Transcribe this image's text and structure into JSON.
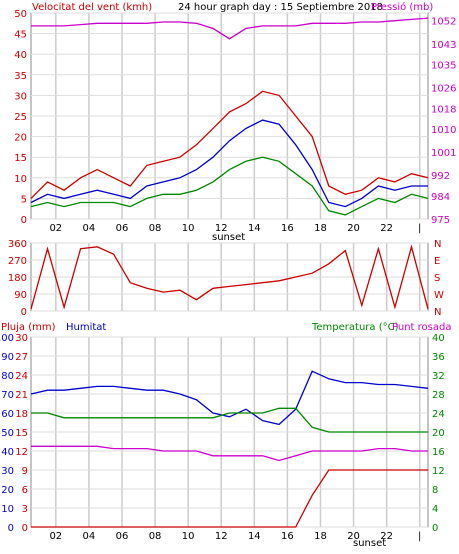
{
  "chart_data": [
    {
      "type": "line",
      "title": "24 hour graph day : 15 Septiembre 2018",
      "left_label": "Velocitat del vent (kmh)",
      "right_label": "Pressió (mb)",
      "ylim": [
        0,
        50
      ],
      "y_ticks": [
        "0",
        "5",
        "10",
        "15",
        "20",
        "25",
        "30",
        "35",
        "40",
        "45",
        "50"
      ],
      "y2lim": [
        975,
        1055
      ],
      "y2_ticks": [
        "975",
        "984",
        "992",
        "1001",
        "1010",
        "1018",
        "1026",
        "1035",
        "1043",
        "1052"
      ],
      "x_ticks": [
        "02",
        "04",
        "06",
        "08",
        "10",
        "12",
        "14",
        "16",
        "18",
        "20",
        "22",
        "|"
      ],
      "sunset_label": "sunset",
      "x": [
        0,
        1,
        2,
        3,
        4,
        5,
        6,
        7,
        8,
        9,
        10,
        11,
        12,
        13,
        14,
        15,
        16,
        17,
        18,
        19,
        20,
        21,
        22,
        23,
        24
      ],
      "series": [
        {
          "color": "#cc0000",
          "values": [
            5,
            9,
            7,
            10,
            12,
            10,
            8,
            13,
            14,
            15,
            18,
            22,
            26,
            28,
            31,
            30,
            25,
            20,
            8,
            6,
            7,
            10,
            9,
            11,
            10
          ]
        },
        {
          "color": "#0000cc",
          "values": [
            4,
            6,
            5,
            6,
            7,
            6,
            5,
            8,
            9,
            10,
            12,
            15,
            19,
            22,
            24,
            23,
            18,
            12,
            4,
            3,
            5,
            8,
            7,
            8,
            8
          ]
        },
        {
          "color": "#008800",
          "values": [
            3,
            4,
            3,
            4,
            4,
            4,
            3,
            5,
            6,
            6,
            7,
            9,
            12,
            14,
            15,
            14,
            11,
            8,
            2,
            1,
            3,
            5,
            4,
            6,
            5
          ]
        },
        {
          "color": "#cc00cc",
          "axis": "right",
          "values": [
            1050,
            1050,
            1050,
            1050.5,
            1051,
            1051,
            1051,
            1051,
            1051.5,
            1051.5,
            1051,
            1049,
            1045,
            1049,
            1050,
            1050,
            1050,
            1051,
            1051,
            1051,
            1051.5,
            1051.5,
            1052,
            1052.5,
            1053
          ]
        }
      ]
    },
    {
      "type": "line",
      "y_ticks": [
        "0",
        "90",
        "180",
        "270",
        "360"
      ],
      "ylim": [
        0,
        360
      ],
      "directions": [
        "N",
        "W",
        "S",
        "E",
        "N"
      ],
      "x_ticks": [
        "02",
        "04",
        "06",
        "08",
        "10",
        "12",
        "14",
        "16",
        "18",
        "20",
        "22",
        "|"
      ],
      "x": [
        0,
        1,
        2,
        3,
        4,
        5,
        6,
        7,
        8,
        9,
        10,
        11,
        12,
        13,
        14,
        15,
        16,
        17,
        18,
        19,
        20,
        21,
        22,
        23,
        24
      ],
      "series": [
        {
          "color": "#cc0000",
          "values": [
            10,
            330,
            20,
            330,
            340,
            300,
            150,
            120,
            100,
            110,
            60,
            120,
            130,
            140,
            150,
            160,
            180,
            200,
            250,
            320,
            30,
            330,
            20,
            340,
            10
          ]
        }
      ]
    },
    {
      "type": "line",
      "labels": [
        "Pluja (mm)",
        "Humitat",
        "Temperatura (°C)",
        "Punt rosada"
      ],
      "left_ticks_rain": [
        "0",
        "3",
        "6",
        "9",
        "12",
        "15",
        "18",
        "21",
        "24",
        "27",
        "30"
      ],
      "left_ticks_hum": [
        "0",
        "10",
        "20",
        "30",
        "40",
        "50",
        "60",
        "70",
        "80",
        "90",
        "100"
      ],
      "right_ticks": [
        "0",
        "4",
        "8",
        "12",
        "16",
        "20",
        "24",
        "28",
        "32",
        "36",
        "40"
      ],
      "x_ticks": [
        "02",
        "04",
        "06",
        "08",
        "10",
        "12",
        "14",
        "16",
        "18",
        "20",
        "22",
        "|"
      ],
      "sunset_label": "sunset",
      "x": [
        0,
        1,
        2,
        3,
        4,
        5,
        6,
        7,
        8,
        9,
        10,
        11,
        12,
        13,
        14,
        15,
        16,
        17,
        18,
        19,
        20,
        21,
        22,
        23,
        24
      ],
      "series": [
        {
          "name": "Humitat",
          "color": "#0000cc",
          "axis": "hum",
          "values": [
            70,
            72,
            72,
            73,
            74,
            74,
            73,
            72,
            72,
            70,
            67,
            60,
            58,
            62,
            56,
            54,
            62,
            82,
            78,
            76,
            76,
            75,
            75,
            74,
            73
          ]
        },
        {
          "name": "Temperatura (°C)",
          "color": "#008800",
          "axis": "right",
          "values": [
            24,
            24,
            23,
            23,
            23,
            23,
            23,
            23,
            23,
            23,
            23,
            23,
            24,
            24,
            24,
            25,
            25,
            21,
            20,
            20,
            20,
            20,
            20,
            20,
            20
          ]
        },
        {
          "name": "Punt rosada",
          "color": "#cc00cc",
          "axis": "right",
          "values": [
            17,
            17,
            17,
            17,
            17,
            16.5,
            16.5,
            16.5,
            16,
            16,
            16,
            15,
            15,
            15,
            15,
            14,
            15,
            16,
            16,
            16,
            16,
            16.5,
            16.5,
            16,
            16
          ]
        },
        {
          "name": "Pluja (mm)",
          "color": "#cc0000",
          "axis": "rain",
          "values": [
            0,
            0,
            0,
            0,
            0,
            0,
            0,
            0,
            0,
            0,
            0,
            0,
            0,
            0,
            0,
            0,
            0,
            5,
            9,
            9,
            9,
            9,
            9,
            9,
            9
          ]
        }
      ]
    }
  ]
}
